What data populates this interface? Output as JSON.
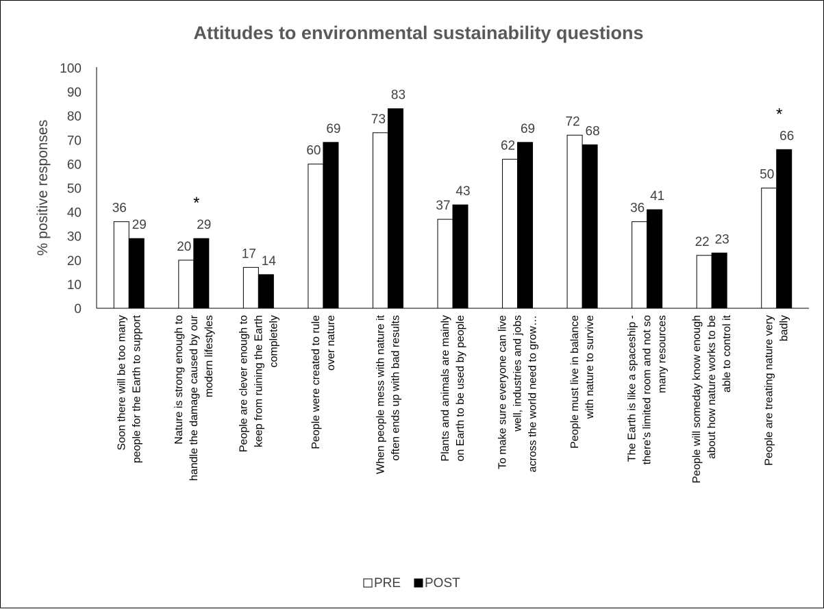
{
  "chart_data": {
    "type": "bar",
    "title": "Attitudes to environmental sustainability questions",
    "ylabel": "% positive responses",
    "xlabel": "",
    "ylim": [
      0,
      100
    ],
    "ytick_step": 10,
    "grid": false,
    "legend_position": "bottom",
    "categories": [
      "Soon there will be too many people for the Earth to support",
      "Nature is strong enough to handle the damage caused by our modern lifestyles",
      "People are clever enough to keep from ruining the Earth completely",
      "People were created to rule over nature",
      "When people mess with nature it often ends up with bad results",
      "Plants and animals are mainly on Earth to be used by people",
      "To make sure everyone can live well, industries and jobs across the world need to grow…",
      "People must live in balance with nature to survive",
      "The Earth is like a spaceship - there's limited room and not so many resources",
      "People will someday know enough about how nature works to be able to control it",
      "People are treating nature very badly"
    ],
    "series": [
      {
        "name": "PRE",
        "values": [
          36,
          20,
          17,
          60,
          73,
          37,
          62,
          72,
          36,
          22,
          50
        ],
        "color": "#ffffff"
      },
      {
        "name": "POST",
        "values": [
          29,
          29,
          14,
          69,
          83,
          43,
          69,
          68,
          41,
          23,
          66
        ],
        "color": "#000000"
      }
    ],
    "annotations": [
      {
        "text": "*",
        "category_index": 1
      },
      {
        "text": "*",
        "category_index": 10
      }
    ]
  }
}
